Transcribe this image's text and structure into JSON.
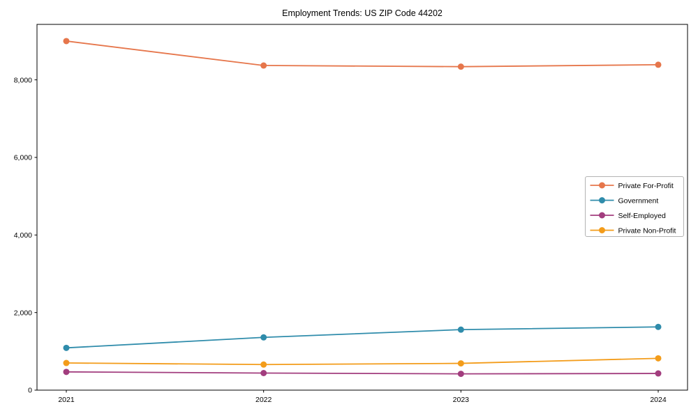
{
  "figure": {
    "title": "Employment Trends: US ZIP Code 44202"
  },
  "chart_data": {
    "type": "line",
    "title": "Employment Trends: US ZIP Code 44202",
    "xlabel": "",
    "ylabel": "",
    "x": [
      "2021",
      "2022",
      "2023",
      "2024"
    ],
    "series": [
      {
        "name": "Private For-Profit",
        "color": "#E6764B",
        "values": [
          9000,
          8370,
          8340,
          8390
        ]
      },
      {
        "name": "Government",
        "color": "#2F8CAB",
        "values": [
          1090,
          1360,
          1560,
          1630
        ]
      },
      {
        "name": "Self-Employed",
        "color": "#A23D7E",
        "values": [
          470,
          440,
          420,
          430
        ]
      },
      {
        "name": "Private Non-Profit",
        "color": "#F39C1A",
        "values": [
          700,
          660,
          690,
          820
        ]
      }
    ],
    "ylim": [
      0,
      9430
    ],
    "yticks": [
      0,
      2000,
      4000,
      6000,
      8000
    ],
    "ytick_labels": [
      "0",
      "2,000",
      "4,000",
      "6,000",
      "8,000"
    ],
    "xtick_labels": [
      "2021",
      "2022",
      "2023",
      "2024"
    ],
    "grid": false,
    "legend": {
      "position": "center right",
      "frame_color": "#B3B3B3",
      "background": "#FFFFFF"
    },
    "axes_edge_color": "#000000",
    "marker": "circle",
    "marker_radius": 4.5,
    "line_width": 1.8
  }
}
